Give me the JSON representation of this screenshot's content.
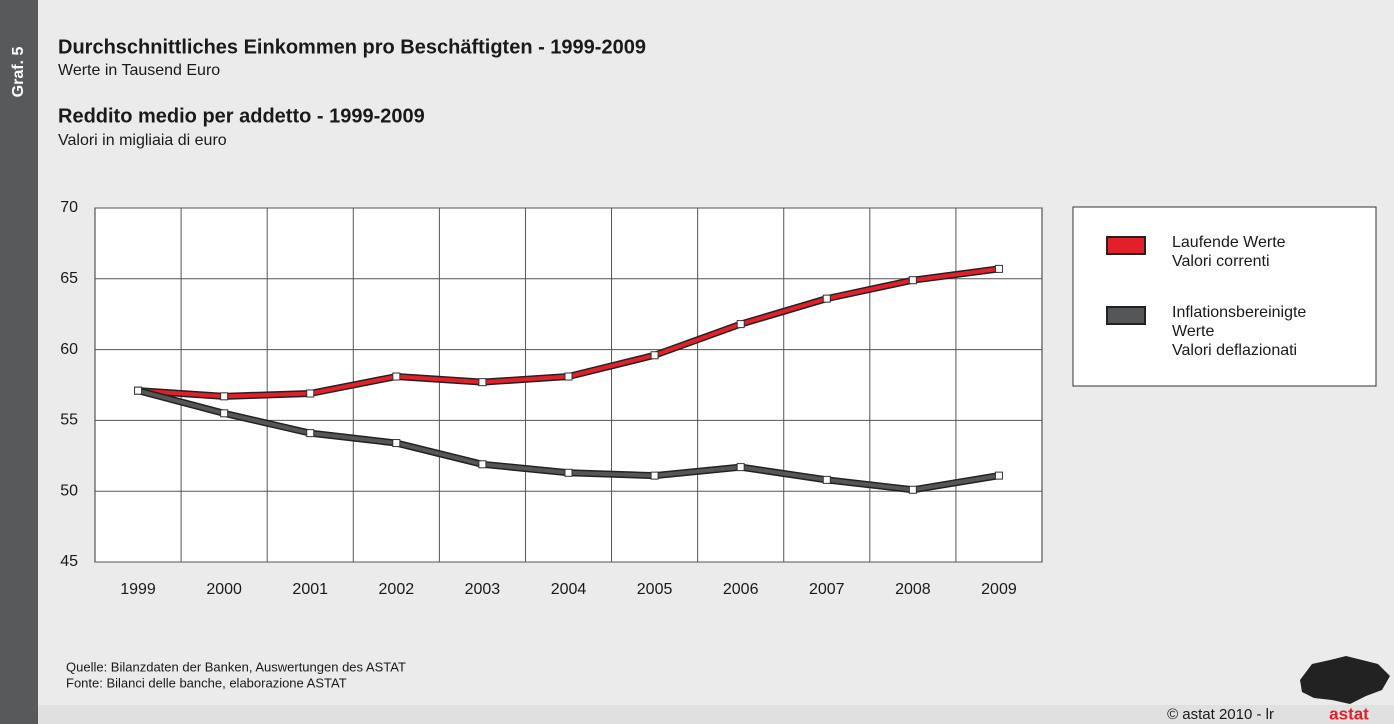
{
  "side_label": "Graf. 5",
  "chart_data": {
    "type": "line",
    "title": "Durchschnittliches Einkommen pro Beschäftigten - 1999-2009",
    "subtitle": "Werte in Tausend Euro",
    "title2": "Reddito medio per addetto - 1999-2009",
    "subtitle2": "Valori in migliaia di euro",
    "categories": [
      "1999",
      "2000",
      "2001",
      "2002",
      "2003",
      "2004",
      "2005",
      "2006",
      "2007",
      "2008",
      "2009"
    ],
    "series": [
      {
        "name": [
          "Laufende Werte",
          "Valori correnti"
        ],
        "color": "#e3202a",
        "values": [
          57.1,
          56.7,
          56.9,
          58.1,
          57.7,
          58.1,
          59.6,
          61.8,
          63.6,
          64.9,
          65.7
        ]
      },
      {
        "name": [
          "Inflationsbereinigte",
          "Werte",
          "Valori deflazionati"
        ],
        "color": "#555658",
        "values": [
          57.1,
          55.5,
          54.1,
          53.4,
          51.9,
          51.3,
          51.1,
          51.7,
          50.8,
          50.1,
          51.1
        ]
      }
    ],
    "ylim": [
      45,
      70
    ],
    "yticks": [
      45,
      50,
      55,
      60,
      65,
      70
    ],
    "grid": true,
    "legend": "right"
  },
  "source": [
    "Quelle: Bilanzdaten der Banken, Auswertungen des ASTAT",
    "Fonte: Bilanci delle banche, elaborazione ASTAT"
  ],
  "copyright": "© astat 2010 - lr",
  "logo": "astat"
}
